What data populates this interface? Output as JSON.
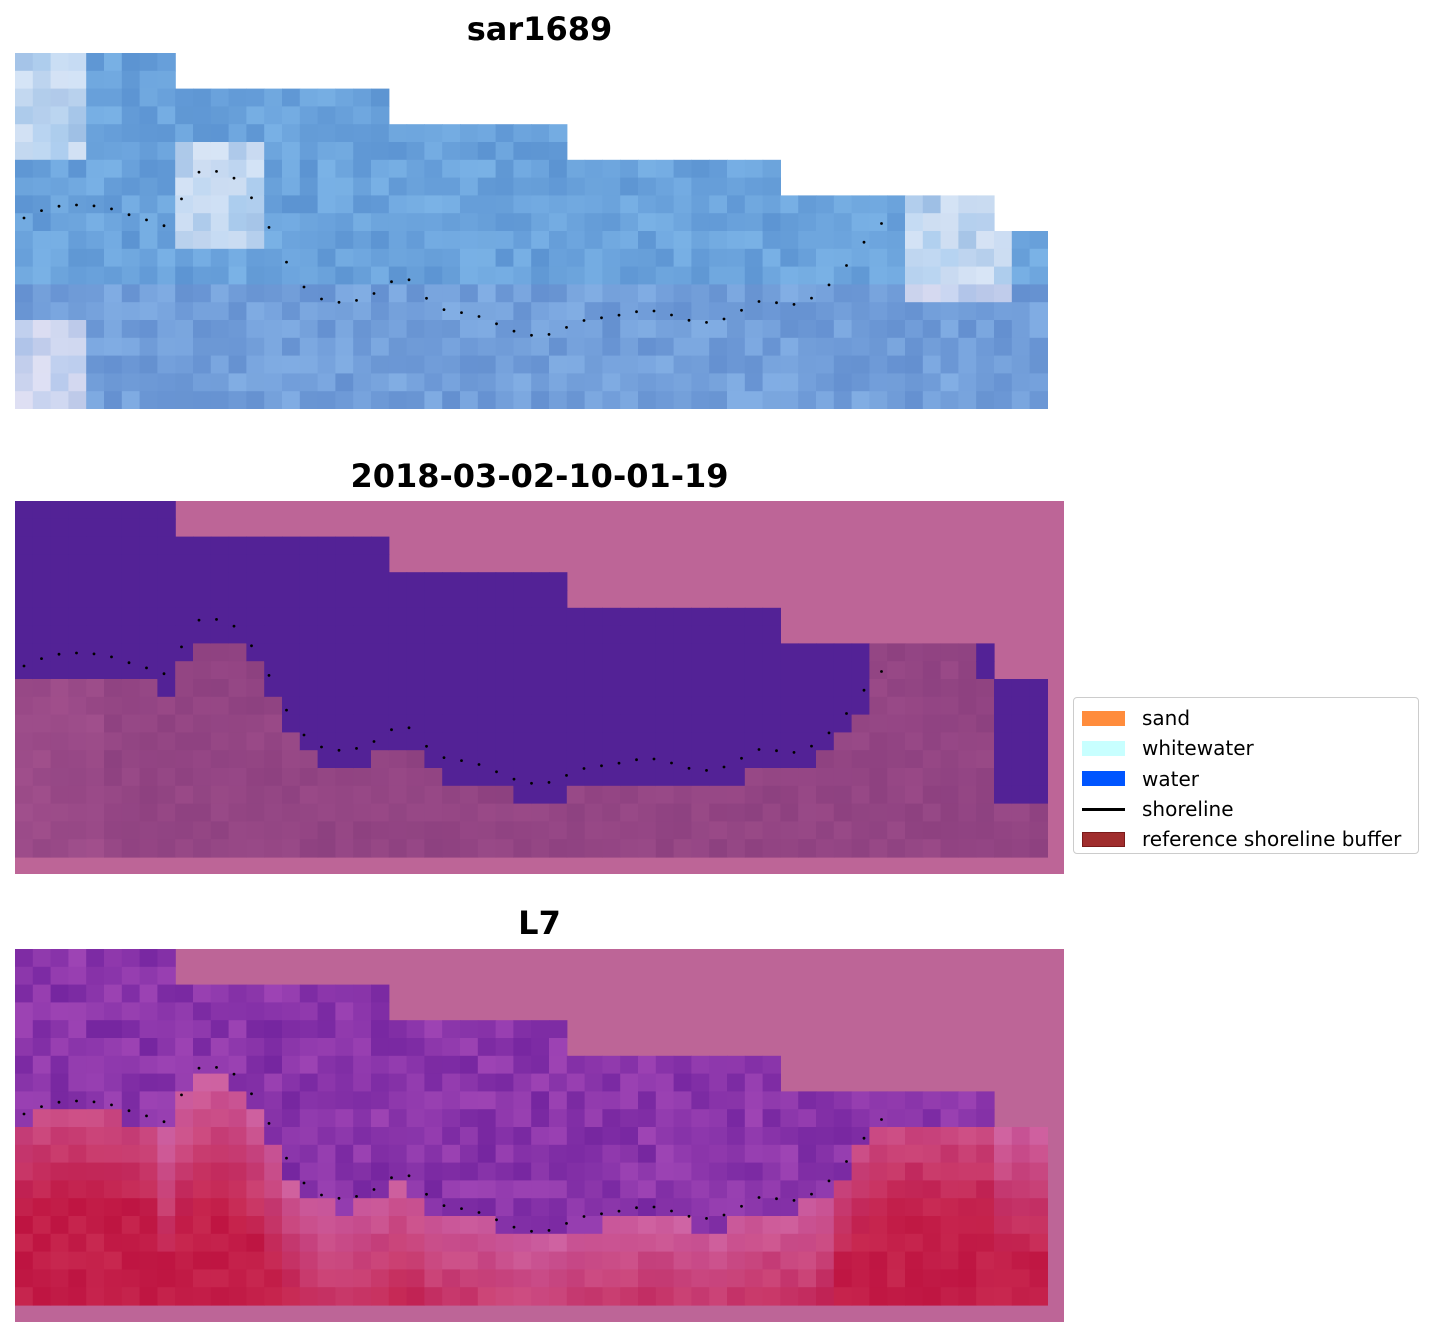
{
  "panels": [
    {
      "title": "sar1689",
      "variant": "rgb"
    },
    {
      "title": "2018-03-02-10-01-19",
      "variant": "classified"
    },
    {
      "title": "L7",
      "variant": "index"
    }
  ],
  "legend": {
    "items": [
      {
        "label": "sand",
        "kind": "patch",
        "color": "#ff8c3c",
        "edge": "#ff8c3c"
      },
      {
        "label": "whitewater",
        "kind": "patch",
        "color": "#c8ffff",
        "edge": "#c8ffff"
      },
      {
        "label": "water",
        "kind": "patch",
        "color": "#0055ff",
        "edge": "#0055ff"
      },
      {
        "label": "shoreline",
        "kind": "line",
        "color": "#000000"
      },
      {
        "label": "reference shoreline buffer",
        "kind": "patch",
        "color": "#a02d2d",
        "edge": "#7a1a1a"
      }
    ]
  },
  "colors": {
    "nodata_pink": "#bd6597",
    "water_purple": "#532296",
    "sand_under_buffer": "#7f3677",
    "rgb_blue": "#5e97d4",
    "index_purple": "#7a2aa2",
    "index_red": "#c5265a",
    "shoreline": "#000000"
  }
}
